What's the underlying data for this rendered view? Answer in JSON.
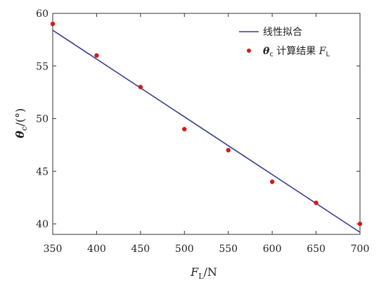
{
  "chart_data": {
    "type": "scatter",
    "xlabel": "F_L/N",
    "ylabel": "θ_c/(°)",
    "xlim": [
      350,
      700
    ],
    "ylim": [
      39,
      60
    ],
    "x_ticks": [
      350,
      400,
      450,
      500,
      550,
      600,
      650,
      700
    ],
    "y_ticks": [
      40,
      45,
      50,
      55,
      60
    ],
    "grid": false,
    "legend_position": "top-right",
    "series": [
      {
        "name": "线性拟合",
        "type": "line",
        "color": "#3a3f8f",
        "x": [
          350,
          700
        ],
        "y": [
          58.4,
          39.2
        ]
      },
      {
        "name": "θc 计算结果 FL",
        "type": "scatter",
        "color": "#d11a1a",
        "x": [
          350,
          400,
          450,
          500,
          550,
          600,
          650,
          700
        ],
        "y": [
          59,
          56,
          53,
          49,
          47,
          44,
          42,
          40
        ]
      }
    ]
  },
  "axes_text": {
    "x_label_main": "F",
    "x_label_sub": "L",
    "x_label_unit": "/N",
    "y_label_main": "θ",
    "y_label_sub": "c",
    "y_label_unit": "/(°)"
  },
  "legend": {
    "line_label": "线性拟合",
    "scatter_main": "θ",
    "scatter_sub": "c",
    "scatter_label": " 计算结果 ",
    "scatter_tail_main": "F",
    "scatter_tail_sub": "L"
  }
}
